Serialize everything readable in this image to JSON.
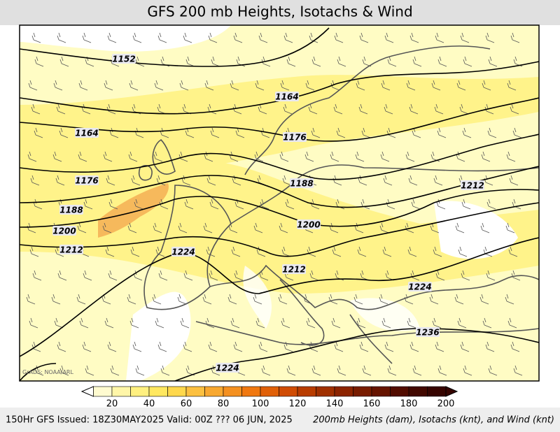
{
  "header": {
    "title": "GFS 200 mb Heights, Isotachs & Wind"
  },
  "map": {
    "credit": "GrADS: NOAA/ARL",
    "contour_labels": [
      "1152",
      "1164",
      "1164",
      "1176",
      "1176",
      "1188",
      "1188",
      "1212",
      "1200",
      "1200",
      "1212",
      "1224",
      "1212",
      "1224",
      "1236",
      "1224"
    ]
  },
  "colorbar": {
    "ticks": [
      20,
      40,
      60,
      80,
      100,
      120,
      140,
      160,
      180,
      200
    ]
  },
  "footer": {
    "left": "150Hr GFS Issued: 18Z30MAY2025 Valid: 00Z ??? 06 JUN, 2025",
    "right": "200mb Heights (dam), Isotachs (knt), and Wind (knt)"
  }
}
